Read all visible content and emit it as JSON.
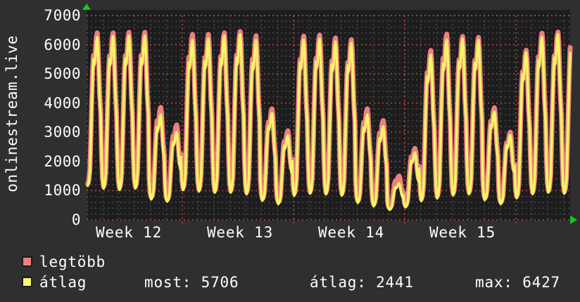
{
  "window": {
    "background": "#2f2f2f",
    "plot_background": "#1d1d1d"
  },
  "chart_data": {
    "type": "line",
    "title": "onlinestream.live",
    "x_axis": {
      "unit": "week",
      "tick_labels": [
        "Week 12",
        "Week 13",
        "Week 14",
        "Week 15"
      ],
      "days_shown": 31
    },
    "y_axis": {
      "min": 0,
      "max": 7000,
      "tick_step": 1000,
      "minor_step": 200,
      "tick_labels": [
        "0",
        "1000",
        "2000",
        "3000",
        "4000",
        "5000",
        "6000",
        "7000"
      ]
    },
    "grid": {
      "minor_color": "#474747",
      "major_color": "#a84444",
      "style": "dotted",
      "minor_x_interval": "day",
      "major_x_interval": "week"
    },
    "series": [
      {
        "name": "legtöbb",
        "color": "#f08080",
        "role": "daily-maximum",
        "daily_peaks": [
          6400,
          6400,
          6420,
          6420,
          3850,
          3250,
          6350,
          6350,
          6400,
          6450,
          6300,
          3800,
          3050,
          6290,
          6330,
          6230,
          6170,
          3800,
          3400,
          1500,
          2450,
          5800,
          6360,
          6280,
          6250,
          3840,
          3000,
          5810,
          6390,
          6427,
          6360
        ],
        "end_value": 5900
      },
      {
        "name": "átlag",
        "color": "#f5f564",
        "role": "daily-average",
        "daily_peaks": [
          6250,
          6280,
          6300,
          6300,
          3600,
          3000,
          6150,
          6200,
          6300,
          6350,
          6150,
          3650,
          2880,
          6170,
          6200,
          6100,
          6050,
          3600,
          3200,
          1250,
          2300,
          5650,
          6160,
          6200,
          6150,
          3700,
          2900,
          5730,
          6250,
          6350,
          6200
        ],
        "end_value": 5706
      }
    ],
    "daily_valleys": [
      900,
      800,
      750,
      800,
      550,
      500,
      750,
      700,
      650,
      650,
      600,
      500,
      420,
      550,
      620,
      600,
      560,
      420,
      320,
      300,
      330,
      380,
      450,
      560,
      600,
      520,
      420,
      480,
      600,
      650,
      620
    ],
    "legend": [
      {
        "label": "legtöbb",
        "swatch_color": "#f08080"
      },
      {
        "label": "átlag",
        "swatch_color": "#f9f877"
      }
    ],
    "stats": {
      "most": "most: 5706",
      "atlag": "átlag: 2441",
      "max": "max: 6427"
    },
    "axis_arrow_color": "#17c917"
  }
}
